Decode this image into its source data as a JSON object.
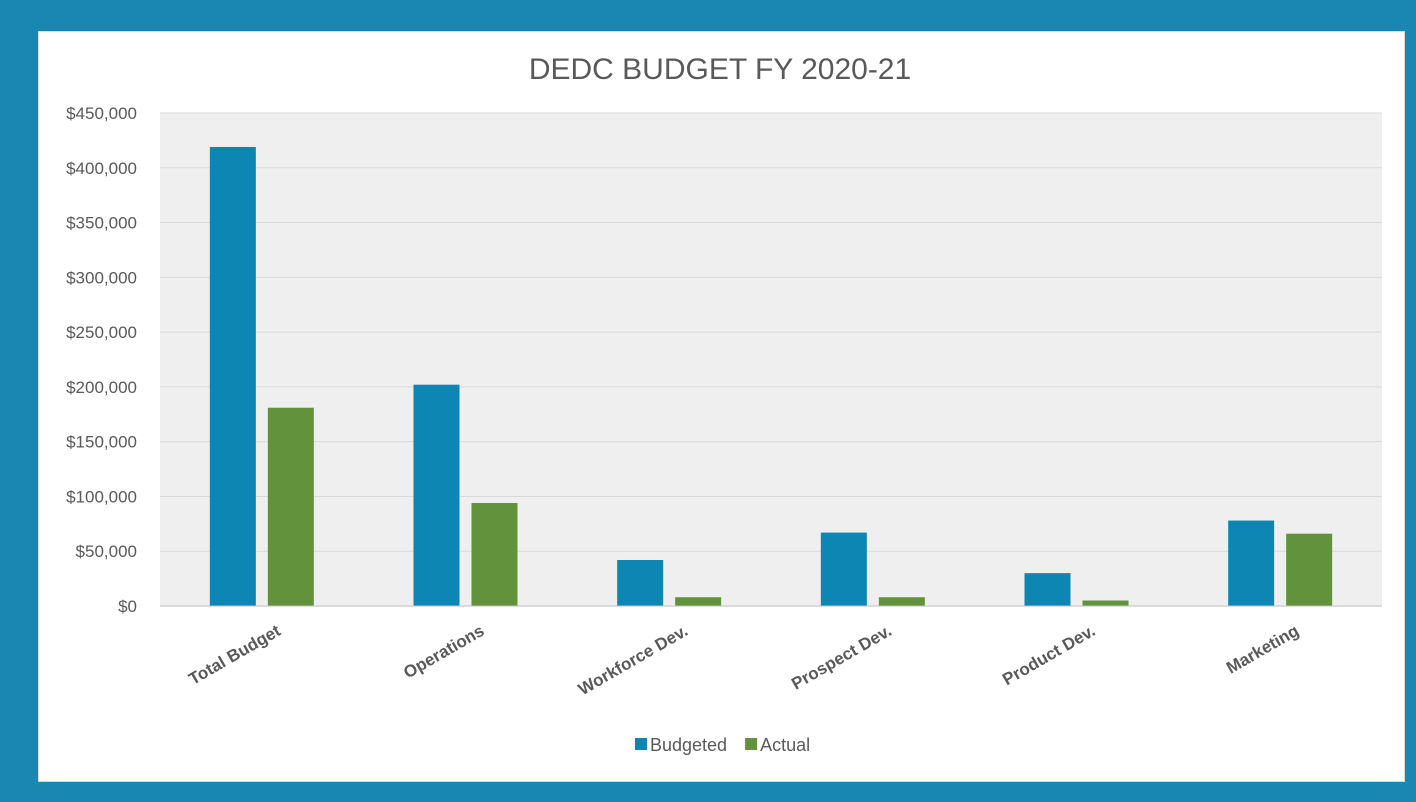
{
  "chart_data": {
    "type": "bar",
    "title": "DEDC BUDGET FY 2020-21",
    "xlabel": "",
    "ylabel": "",
    "categories": [
      "Total Budget",
      "Operations",
      "Workforce Dev.",
      "Prospect Dev.",
      "Product Dev.",
      "Marketing"
    ],
    "series": [
      {
        "name": "Budgeted",
        "color": "#0e86b4",
        "values": [
          419000,
          202000,
          42000,
          67000,
          30000,
          78000
        ]
      },
      {
        "name": "Actual",
        "color": "#63923d",
        "values": [
          181000,
          94000,
          8000,
          8000,
          5000,
          66000
        ]
      }
    ],
    "ylim": [
      0,
      450000
    ],
    "yticks": [
      0,
      50000,
      100000,
      150000,
      200000,
      250000,
      300000,
      350000,
      400000,
      450000
    ],
    "ytick_labels": [
      "$0",
      "$50,000",
      "$100,000",
      "$150,000",
      "$200,000",
      "$250,000",
      "$300,000",
      "$350,000",
      "$400,000",
      "$450,000"
    ],
    "grid": true,
    "legend_position": "bottom",
    "plot_background": "#efefef"
  }
}
